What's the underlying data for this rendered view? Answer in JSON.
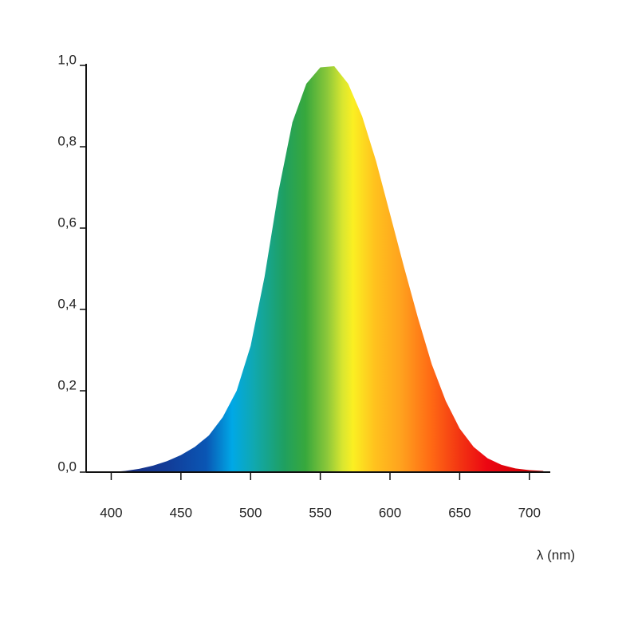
{
  "chart_data": {
    "type": "area",
    "x_label": "λ (nm)",
    "x": [
      400,
      410,
      420,
      430,
      440,
      450,
      460,
      470,
      480,
      490,
      500,
      510,
      520,
      530,
      540,
      550,
      560,
      570,
      580,
      590,
      600,
      610,
      620,
      630,
      640,
      650,
      660,
      670,
      680,
      690,
      700,
      710
    ],
    "values": [
      0.0,
      0.003,
      0.008,
      0.016,
      0.027,
      0.042,
      0.062,
      0.09,
      0.135,
      0.2,
      0.31,
      0.48,
      0.69,
      0.86,
      0.955,
      0.995,
      0.998,
      0.955,
      0.875,
      0.765,
      0.635,
      0.505,
      0.38,
      0.265,
      0.175,
      0.107,
      0.062,
      0.034,
      0.018,
      0.009,
      0.005,
      0.003
    ],
    "xlim": [
      382,
      715
    ],
    "ylim": [
      0,
      1
    ],
    "xticks": [
      400,
      450,
      500,
      550,
      600,
      650,
      700
    ],
    "yticks": [
      {
        "value": 0,
        "label": "0,0"
      },
      {
        "value": 0.2,
        "label": "0,2"
      },
      {
        "value": 0.4,
        "label": "0,4"
      },
      {
        "value": 0.6,
        "label": "0,6"
      },
      {
        "value": 0.8,
        "label": "0,8"
      },
      {
        "value": 1,
        "label": "1,0"
      }
    ]
  }
}
